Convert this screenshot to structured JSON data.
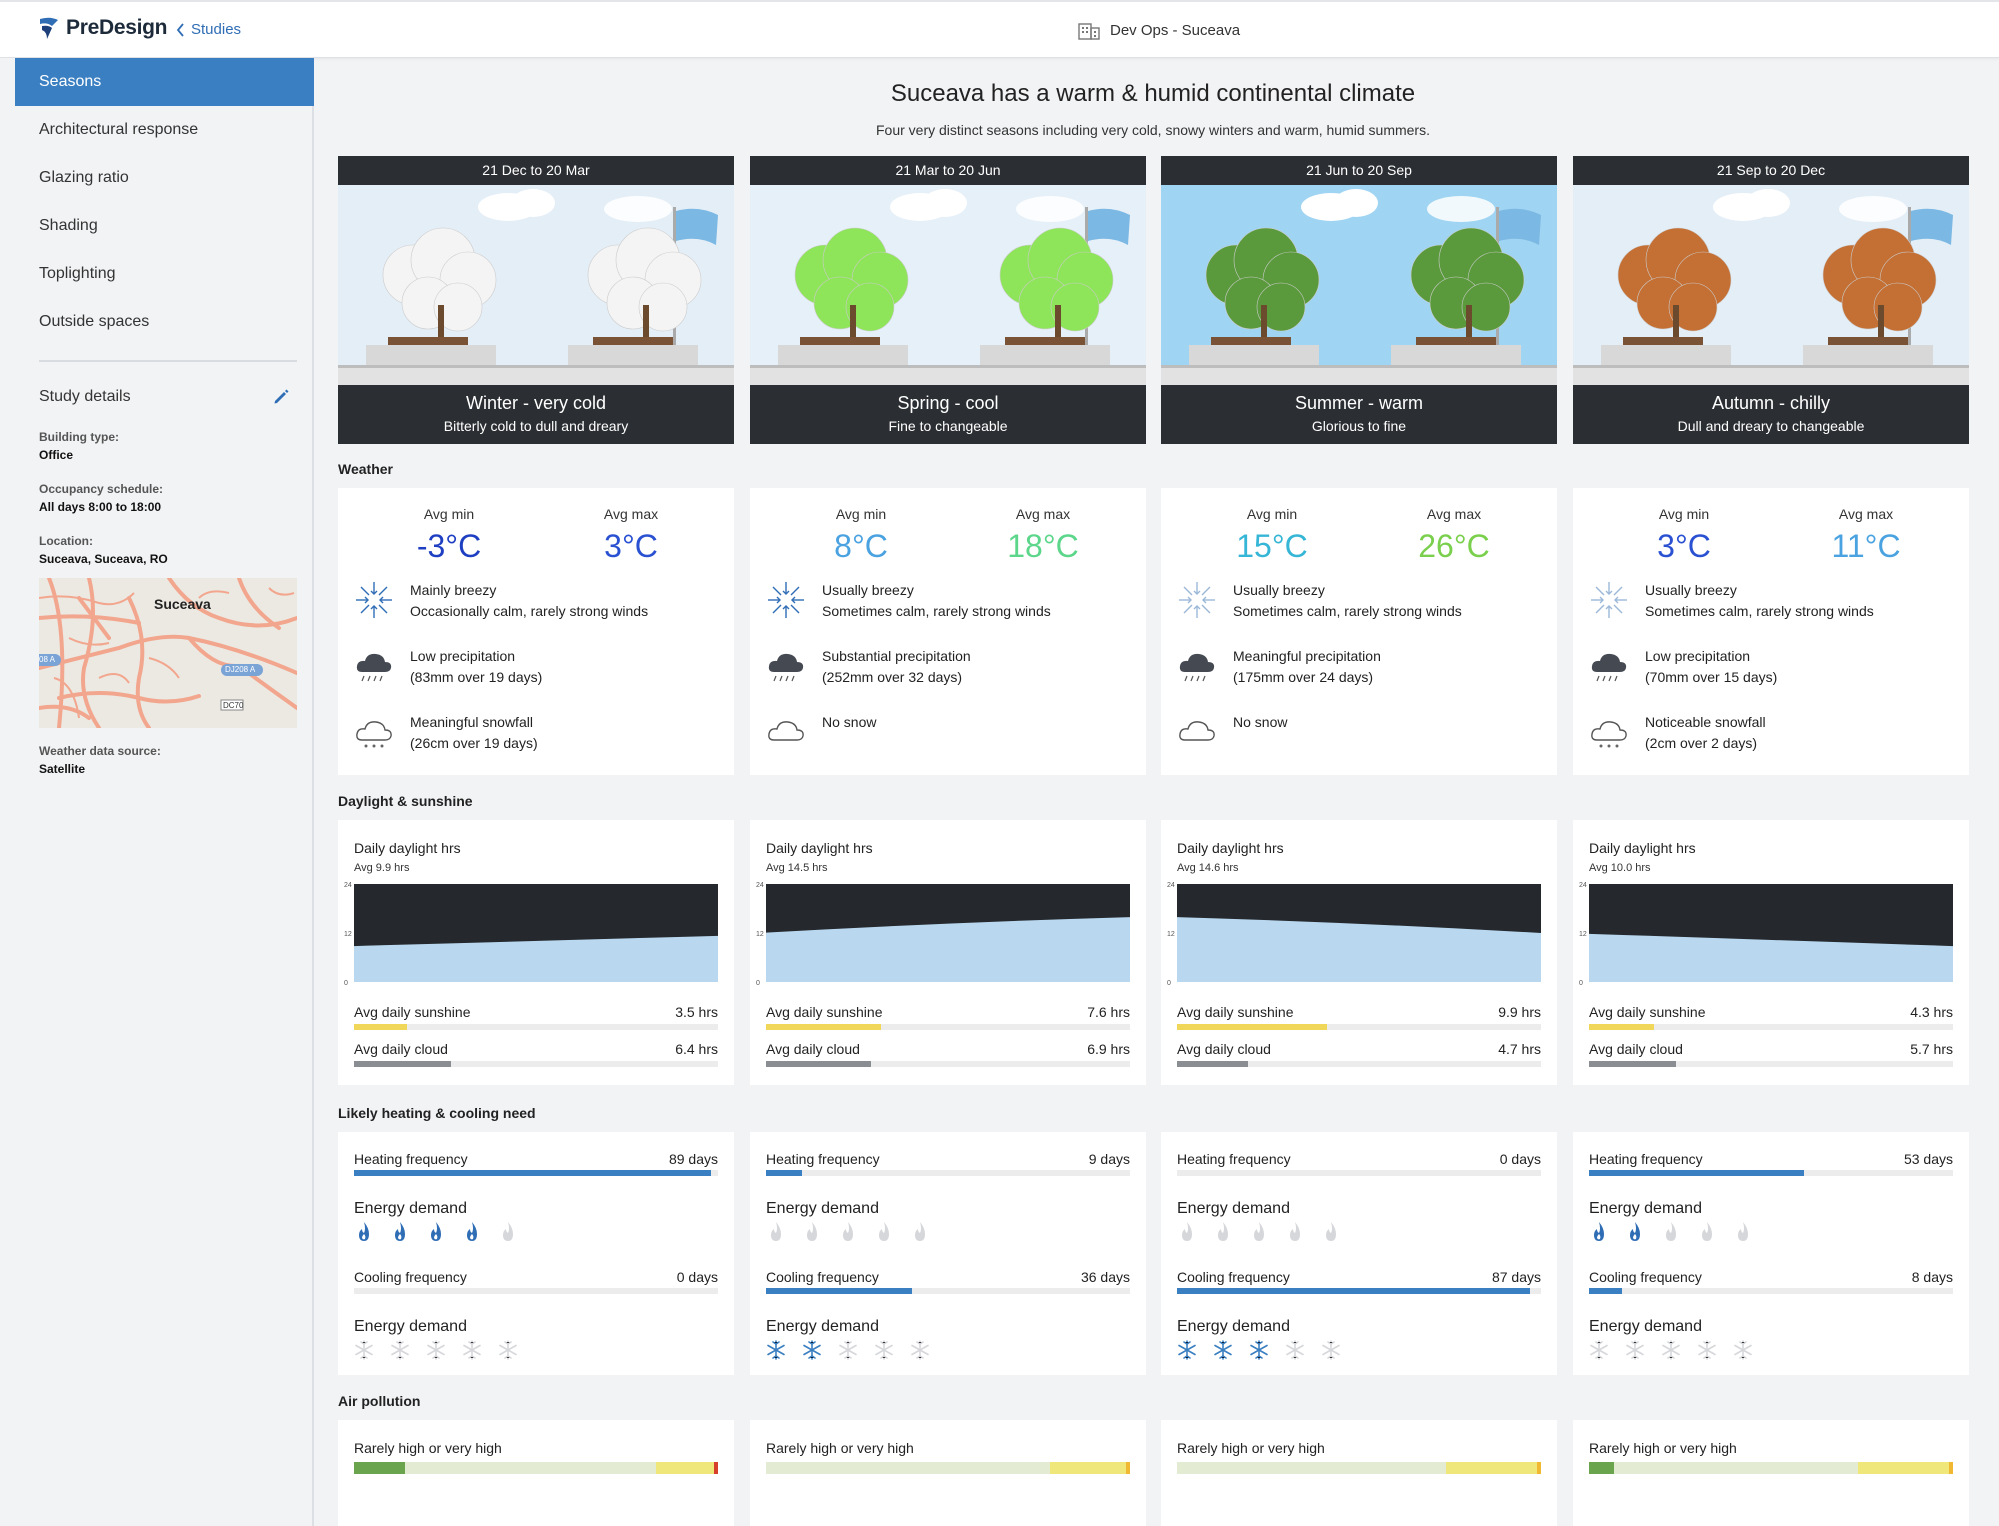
{
  "header": {
    "app_name": "PreDesign",
    "back_label": "Studies",
    "project_name": "Dev Ops - Suceava"
  },
  "sidebar": {
    "items": [
      {
        "label": "Seasons",
        "active": true
      },
      {
        "label": "Architectural response"
      },
      {
        "label": "Glazing ratio"
      },
      {
        "label": "Shading"
      },
      {
        "label": "Toplighting"
      },
      {
        "label": "Outside spaces"
      }
    ],
    "details_title": "Study details",
    "building_type_label": "Building type:",
    "building_type": "Office",
    "occupancy_label": "Occupancy schedule:",
    "occupancy": "All days 8:00 to 18:00",
    "location_label": "Location:",
    "location": "Suceava, Suceava, RO",
    "map_city": "Suceava",
    "map_road1": "DJ208 A",
    "map_road2": "DC70",
    "map_road3": "08 A",
    "source_label": "Weather data source:",
    "source": "Satellite"
  },
  "main": {
    "title": "Suceava has a warm & humid continental climate",
    "subtitle": "Four very distinct seasons including very cold, snowy winters and warm, humid summers.",
    "sections": {
      "weather": "Weather",
      "daylight": "Daylight & sunshine",
      "heating": "Likely heating & cooling need",
      "air": "Air pollution"
    },
    "labels": {
      "avg_min": "Avg min",
      "avg_max": "Avg max",
      "daily_daylight": "Daily daylight hrs",
      "avg_sunshine": "Avg daily sunshine",
      "avg_cloud": "Avg daily cloud",
      "heating_freq": "Heating frequency",
      "cooling_freq": "Cooling frequency",
      "energy_demand": "Energy demand",
      "pollution": "Rarely high or very high"
    },
    "seasons": [
      {
        "dates": "21 Dec to 20 Mar",
        "title": "Winter - very cold",
        "subtitle": "Bitterly cold to dull and dreary",
        "sky": "#e4eef7",
        "tree": "#f4f4f4",
        "min": "-3°C",
        "max": "3°C",
        "min_color": "#1f3fc2",
        "max_color": "#2a51d1",
        "wind1": "Mainly breezy",
        "wind2": "Occasionally calm, rarely strong winds",
        "precip1": "Low precipitation",
        "precip2": "(83mm over 19 days)",
        "snow1": "Meaningful snowfall",
        "snow2": "(26cm over 19 days)",
        "daylight_avg": "Avg 9.9 hrs",
        "daylight_start": 8.8,
        "daylight_end": 11.3,
        "sunshine": "3.5 hrs",
        "sunshine_frac": 0.146,
        "cloud": "6.4 hrs",
        "cloud_frac": 0.267,
        "heating": "89 days",
        "heating_frac": 0.98,
        "heat_level": 4,
        "cooling": "0 days",
        "cooling_frac": 0.0,
        "cool_level": 0,
        "air_green_frac": 0.14,
        "air_yellow_frac": 0.17,
        "air_red": true
      },
      {
        "dates": "21 Mar to 20 Jun",
        "title": "Spring - cool",
        "subtitle": "Fine to changeable",
        "sky": "#e6f0f8",
        "tree": "#8ee55a",
        "min": "8°C",
        "max": "18°C",
        "min_color": "#4aa3e0",
        "max_color": "#5cd68a",
        "wind1": "Usually breezy",
        "wind2": "Sometimes calm, rarely strong winds",
        "precip1": "Substantial precipitation",
        "precip2": "(252mm over 32 days)",
        "snow1": "No snow",
        "snow2": "",
        "daylight_avg": "Avg 14.5 hrs",
        "daylight_start": 12.1,
        "daylight_end": 15.9,
        "sunshine": "7.6 hrs",
        "sunshine_frac": 0.317,
        "cloud": "6.9 hrs",
        "cloud_frac": 0.288,
        "heating": "9 days",
        "heating_frac": 0.1,
        "heat_level": 0,
        "cooling": "36 days",
        "cooling_frac": 0.4,
        "cool_level": 2,
        "air_green_frac": 0.0,
        "air_yellow_frac": 0.22,
        "air_red": false
      },
      {
        "dates": "21 Jun to 20 Sep",
        "title": "Summer - warm",
        "subtitle": "Glorious to fine",
        "sky": "#9fd4f2",
        "tree": "#5a9a3c",
        "min": "15°C",
        "max": "26°C",
        "min_color": "#36b6d6",
        "max_color": "#7ad04c",
        "wind1": "Usually breezy",
        "wind2": "Sometimes calm, rarely strong winds",
        "precip1": "Meaningful precipitation",
        "precip2": "(175mm over 24 days)",
        "snow1": "No snow",
        "snow2": "",
        "daylight_avg": "Avg 14.6 hrs",
        "daylight_start": 15.9,
        "daylight_end": 12.0,
        "sunshine": "9.9 hrs",
        "sunshine_frac": 0.413,
        "cloud": "4.7 hrs",
        "cloud_frac": 0.196,
        "heating": "0 days",
        "heating_frac": 0.0,
        "heat_level": 0,
        "cooling": "87 days",
        "cooling_frac": 0.97,
        "cool_level": 3,
        "air_green_frac": 0.0,
        "air_yellow_frac": 0.26,
        "air_red": false
      },
      {
        "dates": "21 Sep to 20 Dec",
        "title": "Autumn - chilly",
        "subtitle": "Dull and dreary to changeable",
        "sky": "#e4eef7",
        "tree": "#c46f33",
        "min": "3°C",
        "max": "11°C",
        "min_color": "#2a51d1",
        "max_color": "#4aa3e0",
        "wind1": "Usually breezy",
        "wind2": "Sometimes calm, rarely strong winds",
        "precip1": "Low precipitation",
        "precip2": "(70mm over 15 days)",
        "snow1": "Noticeable snowfall",
        "snow2": "(2cm over 2 days)",
        "daylight_avg": "Avg 10.0 hrs",
        "daylight_start": 11.8,
        "daylight_end": 8.8,
        "sunshine": "4.3 hrs",
        "sunshine_frac": 0.179,
        "cloud": "5.7 hrs",
        "cloud_frac": 0.238,
        "heating": "53 days",
        "heating_frac": 0.59,
        "heat_level": 2,
        "cooling": "8 days",
        "cooling_frac": 0.09,
        "cool_level": 0,
        "air_green_frac": 0.07,
        "air_yellow_frac": 0.26,
        "air_red": false
      }
    ],
    "daylight_axis": [
      "24",
      "12",
      "0"
    ]
  }
}
